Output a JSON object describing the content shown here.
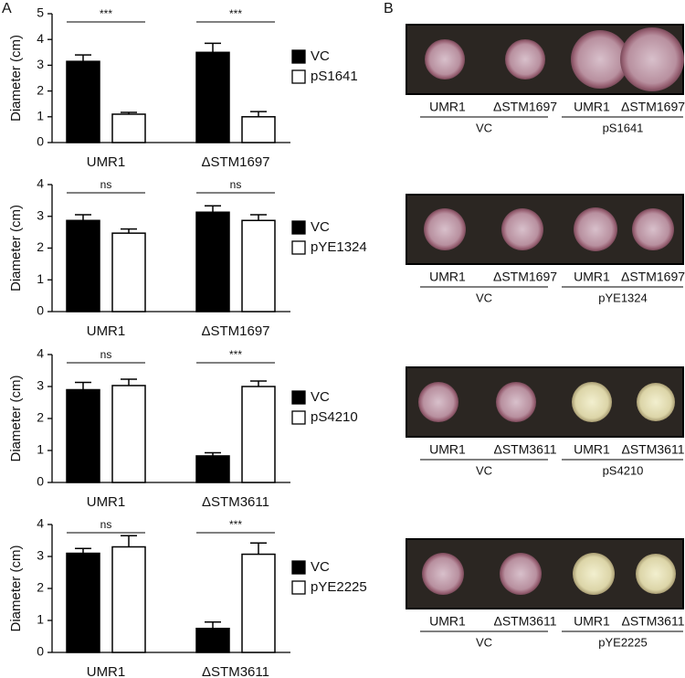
{
  "panel_labels": [
    "A",
    "B"
  ],
  "chart_data": [
    {
      "type": "bar",
      "y_label": "Diameter (cm)",
      "categories": [
        "UMR1",
        "ΔSTM1697"
      ],
      "ylim": [
        0,
        5
      ],
      "yticks": [
        0,
        1,
        2,
        3,
        4,
        5
      ],
      "series": [
        {
          "name": "VC",
          "color": "#000000",
          "values": [
            3.15,
            3.5
          ],
          "errors": [
            0.25,
            0.35
          ]
        },
        {
          "name": "pS1641",
          "color": "#ffffff",
          "values": [
            1.1,
            1.0
          ],
          "errors": [
            0.07,
            0.2
          ]
        }
      ],
      "annotations": [
        "***",
        "***"
      ]
    },
    {
      "type": "bar",
      "y_label": "Diameter (cm)",
      "categories": [
        "UMR1",
        "ΔSTM1697"
      ],
      "ylim": [
        0,
        4
      ],
      "yticks": [
        0,
        1,
        2,
        3,
        4
      ],
      "series": [
        {
          "name": "VC",
          "color": "#000000",
          "values": [
            2.87,
            3.13
          ],
          "errors": [
            0.18,
            0.2
          ]
        },
        {
          "name": "pYE1324",
          "color": "#ffffff",
          "values": [
            2.47,
            2.87
          ],
          "errors": [
            0.13,
            0.18
          ]
        }
      ],
      "annotations": [
        "ns",
        "ns"
      ]
    },
    {
      "type": "bar",
      "y_label": "Diameter (cm)",
      "categories": [
        "UMR1",
        "ΔSTM3611"
      ],
      "ylim": [
        0,
        4
      ],
      "yticks": [
        0,
        1,
        2,
        3,
        4
      ],
      "series": [
        {
          "name": "VC",
          "color": "#000000",
          "values": [
            2.9,
            0.83
          ],
          "errors": [
            0.23,
            0.1
          ]
        },
        {
          "name": "pS4210",
          "color": "#ffffff",
          "values": [
            3.03,
            3.0
          ],
          "errors": [
            0.2,
            0.17
          ]
        }
      ],
      "annotations": [
        "ns",
        "***"
      ]
    },
    {
      "type": "bar",
      "y_label": "Diameter (cm)",
      "categories": [
        "UMR1",
        "ΔSTM3611"
      ],
      "ylim": [
        0,
        4
      ],
      "yticks": [
        0,
        1,
        2,
        3,
        4
      ],
      "series": [
        {
          "name": "VC",
          "color": "#000000",
          "values": [
            3.1,
            0.75
          ],
          "errors": [
            0.15,
            0.2
          ]
        },
        {
          "name": "pYE2225",
          "color": "#ffffff",
          "values": [
            3.3,
            3.07
          ],
          "errors": [
            0.35,
            0.35
          ]
        }
      ],
      "annotations": [
        "ns",
        "***"
      ]
    }
  ],
  "plates": [
    {
      "strains": [
        "UMR1",
        "ΔSTM1697",
        "UMR1",
        "ΔSTM1697"
      ],
      "groups": [
        "VC",
        "pS1641"
      ]
    },
    {
      "strains": [
        "UMR1",
        "ΔSTM1697",
        "UMR1",
        "ΔSTM1697"
      ],
      "groups": [
        "VC",
        "pYE1324"
      ]
    },
    {
      "strains": [
        "UMR1",
        "ΔSTM3611",
        "UMR1",
        "ΔSTM3611"
      ],
      "groups": [
        "VC",
        "pS4210"
      ]
    },
    {
      "strains": [
        "UMR1",
        "ΔSTM3611",
        "UMR1",
        "ΔSTM3611"
      ],
      "groups": [
        "VC",
        "pYE2225"
      ]
    }
  ]
}
